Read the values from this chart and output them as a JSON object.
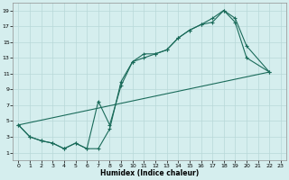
{
  "xlabel": "Humidex (Indice chaleur)",
  "bg_color": "#d5eeee",
  "grid_color": "#b8d8d8",
  "line_color": "#1a6b5a",
  "xlim": [
    -0.5,
    23.5
  ],
  "ylim": [
    0,
    20
  ],
  "xticks": [
    0,
    1,
    2,
    3,
    4,
    5,
    6,
    7,
    8,
    9,
    10,
    11,
    12,
    13,
    14,
    15,
    16,
    17,
    18,
    19,
    20,
    21,
    22,
    23
  ],
  "yticks": [
    1,
    3,
    5,
    7,
    9,
    11,
    13,
    15,
    17,
    19
  ],
  "series1_x": [
    0,
    1,
    2,
    3,
    4,
    5,
    6,
    7,
    8,
    9,
    10,
    11,
    12,
    13,
    14,
    15,
    16,
    17,
    18,
    19,
    20,
    22
  ],
  "series1_y": [
    4.5,
    3.0,
    2.5,
    2.2,
    1.5,
    2.2,
    1.5,
    1.5,
    4.0,
    10.0,
    12.5,
    13.5,
    13.5,
    14.0,
    15.5,
    16.5,
    17.2,
    18.0,
    19.0,
    17.5,
    13.0,
    11.2
  ],
  "series2_x": [
    0,
    1,
    2,
    3,
    4,
    5,
    6,
    7,
    8,
    9,
    10,
    11,
    12,
    13,
    14,
    15,
    16,
    17,
    18,
    19,
    20,
    22
  ],
  "series2_y": [
    4.5,
    3.0,
    2.5,
    2.2,
    1.5,
    2.2,
    1.5,
    7.5,
    4.5,
    9.5,
    12.5,
    13.0,
    13.5,
    14.0,
    15.5,
    16.5,
    17.2,
    17.5,
    19.0,
    18.0,
    14.5,
    11.2
  ],
  "series3_x": [
    0,
    22
  ],
  "series3_y": [
    4.5,
    11.2
  ]
}
